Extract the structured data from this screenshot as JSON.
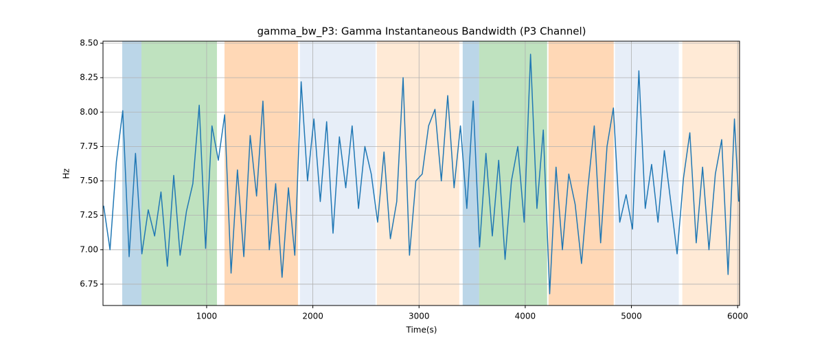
{
  "chart_data": {
    "type": "line",
    "title": "gamma_bw_P3: Gamma Instantaneous Bandwidth (P3 Channel)",
    "x_label": "Time(s)",
    "y_label": "Hz",
    "xlim": [
      24,
      6018
    ],
    "ylim": [
      6.595,
      8.515
    ],
    "xticks": [
      1000,
      2000,
      3000,
      4000,
      5000,
      6000
    ],
    "yticks": [
      6.75,
      {
        "value": 7.0,
        "label": "7.00"
      },
      7.25,
      {
        "value": 7.5,
        "label": "7.50"
      },
      7.75,
      {
        "value": 8.0,
        "label": "8.00"
      },
      8.25,
      {
        "value": 8.5,
        "label": "8.50"
      }
    ],
    "grid": true,
    "spans": [
      {
        "start": 205,
        "end": 386,
        "color": "#1f77b4",
        "alpha": 0.3
      },
      {
        "start": 386,
        "end": 1097,
        "color": "#2ca02c",
        "alpha": 0.3
      },
      {
        "start": 1168,
        "end": 1860,
        "color": "#ff7f0e",
        "alpha": 0.3
      },
      {
        "start": 1879,
        "end": 2590,
        "color": "#aec7e8",
        "alpha": 0.3
      },
      {
        "start": 2603,
        "end": 3379,
        "color": "#ffbb78",
        "alpha": 0.3
      },
      {
        "start": 3411,
        "end": 3566,
        "color": "#1f77b4",
        "alpha": 0.3
      },
      {
        "start": 3566,
        "end": 4206,
        "color": "#2ca02c",
        "alpha": 0.3
      },
      {
        "start": 4219,
        "end": 4833,
        "color": "#ff7f0e",
        "alpha": 0.3
      },
      {
        "start": 4845,
        "end": 5446,
        "color": "#aec7e8",
        "alpha": 0.3
      },
      {
        "start": 5479,
        "end": 6018,
        "color": "#ffbb78",
        "alpha": 0.3
      }
    ],
    "x": [
      30,
      90,
      150,
      210,
      270,
      330,
      390,
      450,
      510,
      570,
      630,
      690,
      750,
      810,
      870,
      930,
      990,
      1050,
      1110,
      1170,
      1230,
      1290,
      1350,
      1410,
      1470,
      1530,
      1590,
      1650,
      1710,
      1770,
      1830,
      1890,
      1950,
      2010,
      2070,
      2130,
      2190,
      2250,
      2310,
      2370,
      2430,
      2490,
      2550,
      2610,
      2670,
      2730,
      2790,
      2850,
      2910,
      2970,
      3030,
      3090,
      3150,
      3210,
      3270,
      3330,
      3390,
      3450,
      3510,
      3570,
      3630,
      3690,
      3750,
      3810,
      3870,
      3930,
      3990,
      4050,
      4110,
      4170,
      4230,
      4290,
      4350,
      4410,
      4470,
      4530,
      4590,
      4650,
      4710,
      4770,
      4830,
      4890,
      4950,
      5010,
      5070,
      5130,
      5190,
      5250,
      5310,
      5370,
      5430,
      5490,
      5550,
      5610,
      5670,
      5730,
      5790,
      5850,
      5910,
      5970,
      6010
    ],
    "series": [
      {
        "color": "#1f77b4",
        "values": [
          7.32,
          7.0,
          7.64,
          8.01,
          6.95,
          7.7,
          6.97,
          7.29,
          7.1,
          7.42,
          6.88,
          7.54,
          6.96,
          7.28,
          7.48,
          8.05,
          7.01,
          7.9,
          7.65,
          7.98,
          6.83,
          7.58,
          6.95,
          7.83,
          7.39,
          8.08,
          7.0,
          7.48,
          6.8,
          7.45,
          6.96,
          8.22,
          7.5,
          7.95,
          7.35,
          7.93,
          7.12,
          7.82,
          7.45,
          7.9,
          7.3,
          7.75,
          7.55,
          7.2,
          7.71,
          7.08,
          7.35,
          8.25,
          6.96,
          7.5,
          7.55,
          7.9,
          8.02,
          7.5,
          8.12,
          7.45,
          7.9,
          7.3,
          8.08,
          7.02,
          7.7,
          7.1,
          7.65,
          6.93,
          7.5,
          7.75,
          7.2,
          8.42,
          7.3,
          7.87,
          6.68,
          7.6,
          7.0,
          7.55,
          7.33,
          6.9,
          7.45,
          7.9,
          7.05,
          7.75,
          8.03,
          7.2,
          7.4,
          7.15,
          8.3,
          7.3,
          7.62,
          7.2,
          7.72,
          7.35,
          6.97,
          7.52,
          7.85,
          7.05,
          7.6,
          7.0,
          7.55,
          7.8,
          6.82,
          7.95,
          7.35
        ]
      }
    ]
  }
}
